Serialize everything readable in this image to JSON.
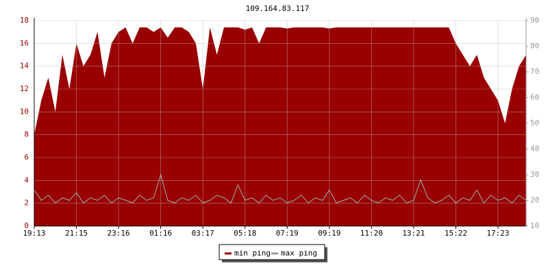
{
  "chart_data": {
    "type": "line",
    "title": "109.164.83.117",
    "categories": [
      "19:13",
      null,
      null,
      null,
      null,
      null,
      "21:15",
      null,
      null,
      null,
      null,
      null,
      "23:16",
      null,
      null,
      null,
      null,
      null,
      "01:16",
      null,
      null,
      null,
      null,
      null,
      "03:17",
      null,
      null,
      null,
      null,
      null,
      "05:18",
      null,
      null,
      null,
      null,
      null,
      "07:19",
      null,
      null,
      null,
      null,
      null,
      "09:19",
      null,
      null,
      null,
      null,
      null,
      "11:20",
      null,
      null,
      null,
      null,
      null,
      "13:21",
      null,
      null,
      null,
      null,
      null,
      "15:22",
      null,
      null,
      null,
      null,
      null,
      "17:23",
      null,
      null,
      null,
      null
    ],
    "series": [
      {
        "name": "min ping",
        "color": "#990000",
        "values": [
          8,
          11,
          13,
          10,
          15,
          12,
          16,
          14,
          15,
          17,
          13,
          16,
          17,
          17.4,
          16,
          17.4,
          17.4,
          17,
          17.4,
          16.5,
          17.4,
          17.4,
          17,
          16,
          12,
          17.4,
          15,
          17.4,
          17.4,
          17.4,
          17.2,
          17.4,
          16,
          17.4,
          17.4,
          17.4,
          17.3,
          17.4,
          17.4,
          17.4,
          17.4,
          17.4,
          17.3,
          17.4,
          17.4,
          17.4,
          17.4,
          17.4,
          17.4,
          17.4,
          17.4,
          17.4,
          17.4,
          17.4,
          17.4,
          17.4,
          17.4,
          17.4,
          17.4,
          17.4,
          16,
          15,
          14,
          15,
          13,
          12,
          11,
          9,
          12,
          14,
          15
        ]
      },
      {
        "name": "max ping",
        "color": "#999999",
        "axis": "y2",
        "values": [
          24,
          20,
          22,
          19,
          21,
          20,
          23,
          19,
          21,
          20,
          22,
          19,
          21,
          20,
          19,
          22,
          20,
          21,
          30,
          20,
          19,
          21,
          20,
          22,
          19,
          20,
          22,
          21,
          19,
          26,
          20,
          21,
          19,
          22,
          20,
          21,
          19,
          20,
          22,
          19,
          21,
          20,
          24,
          19,
          20,
          21,
          19,
          22,
          20,
          19,
          21,
          20,
          22,
          19,
          20,
          28,
          21,
          19,
          20,
          22,
          19,
          21,
          20,
          24,
          19,
          22,
          20,
          21,
          19,
          22,
          20
        ]
      }
    ],
    "ylim": [
      0,
      18
    ],
    "yticks": [
      0,
      2,
      4,
      6,
      8,
      10,
      12,
      14,
      16,
      18
    ],
    "y2lim": [
      10,
      90
    ],
    "y2ticks": [
      10,
      20,
      30,
      40,
      50,
      60,
      70,
      80,
      90
    ],
    "grid": true
  }
}
